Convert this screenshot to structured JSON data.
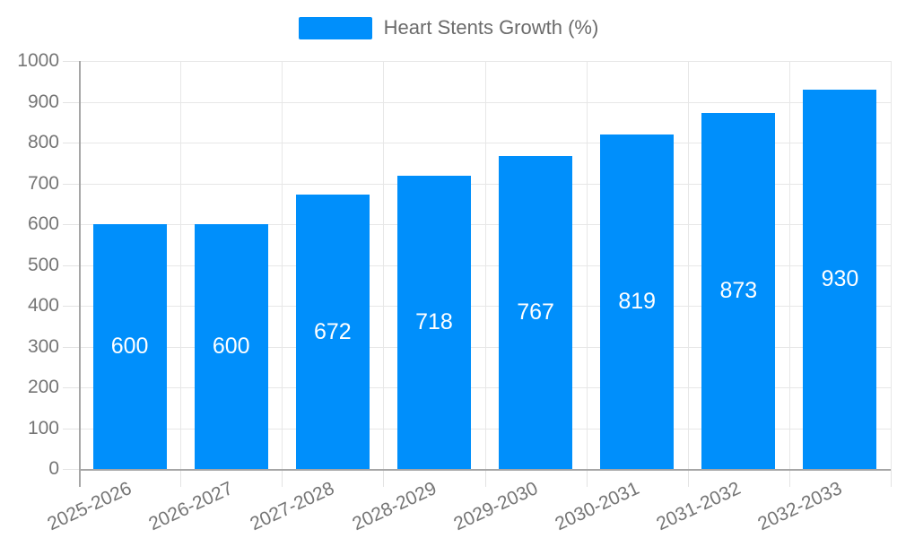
{
  "legend": {
    "label": "Heart Stents Growth (%)"
  },
  "chart_data": {
    "type": "bar",
    "title": "Heart Stents Growth (%)",
    "categories": [
      "2025-2026",
      "2026-2027",
      "2027-2028",
      "2028-2029",
      "2029-2030",
      "2030-2031",
      "2031-2032",
      "2032-2033"
    ],
    "series": [
      {
        "name": "Heart Stents Growth (%)",
        "values": [
          600,
          600,
          672,
          718,
          767,
          819,
          873,
          930
        ]
      }
    ],
    "value_labels": [
      "600",
      "600",
      "672",
      "718",
      "767",
      "819",
      "873",
      "930"
    ],
    "xlabel": "",
    "ylabel": "",
    "ylim": [
      0,
      1000
    ],
    "ytick_interval": 100,
    "ytick_labels": [
      "0",
      "100",
      "200",
      "300",
      "400",
      "500",
      "600",
      "700",
      "800",
      "900",
      "1000"
    ],
    "grid": true,
    "legend_position": "top",
    "bar_color": "#008FFB",
    "value_label_color": "#ffffff",
    "axis_label_color": "#757575",
    "grid_color": "#e7e7e7",
    "tick_color": "#e3e3e3",
    "axis_line_color": "#a6a6a6",
    "background_color": "#ffffff"
  }
}
